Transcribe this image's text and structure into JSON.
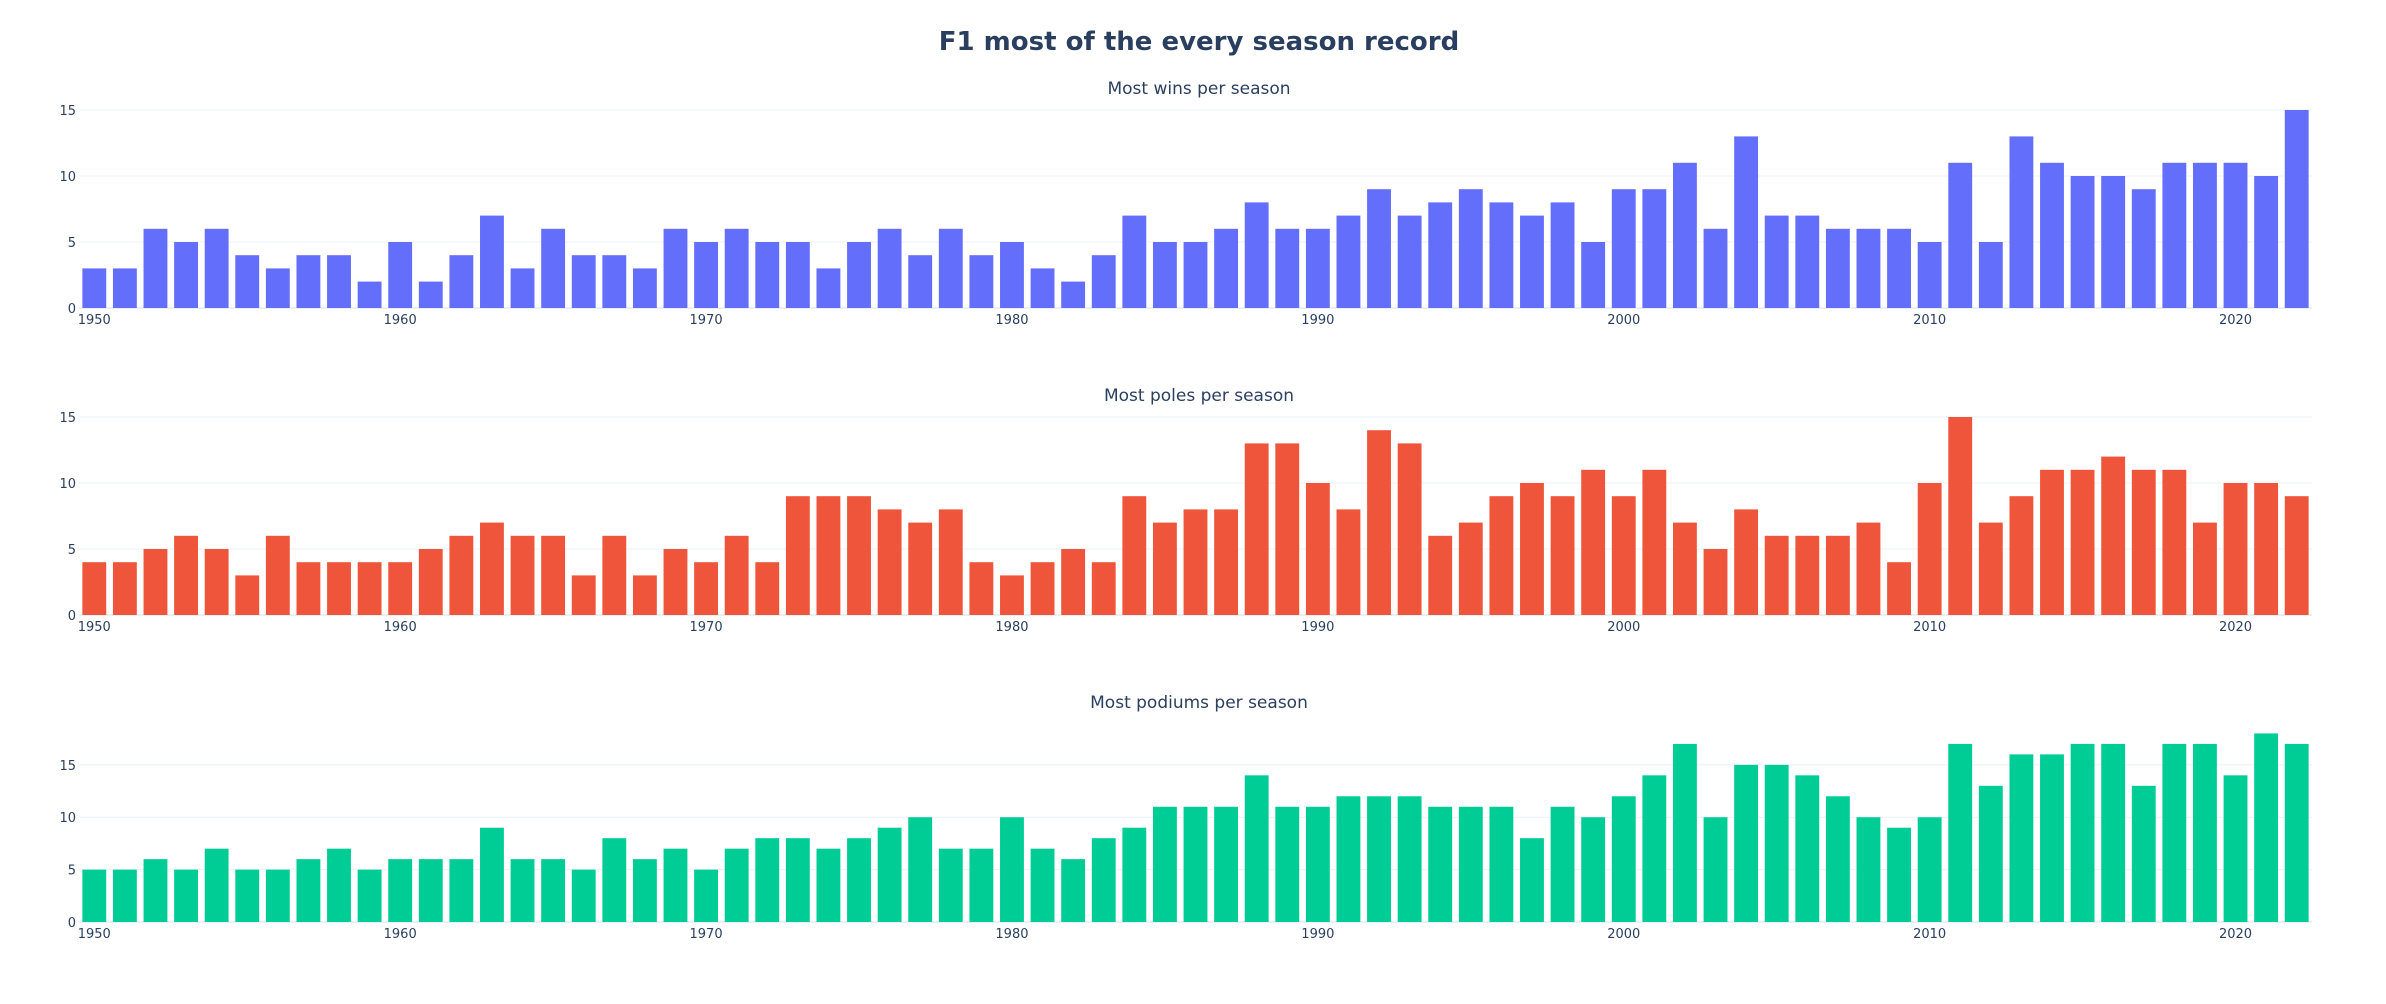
{
  "title": "F1 most of the every season record",
  "chart_data": [
    {
      "type": "bar",
      "title": "Most wins per season",
      "color": "#636efa",
      "x": [
        1950,
        1951,
        1952,
        1953,
        1954,
        1955,
        1956,
        1957,
        1958,
        1959,
        1960,
        1961,
        1962,
        1963,
        1964,
        1965,
        1966,
        1967,
        1968,
        1969,
        1970,
        1971,
        1972,
        1973,
        1974,
        1975,
        1976,
        1977,
        1978,
        1979,
        1980,
        1981,
        1982,
        1983,
        1984,
        1985,
        1986,
        1987,
        1988,
        1989,
        1990,
        1991,
        1992,
        1993,
        1994,
        1995,
        1996,
        1997,
        1998,
        1999,
        2000,
        2001,
        2002,
        2003,
        2004,
        2005,
        2006,
        2007,
        2008,
        2009,
        2010,
        2011,
        2012,
        2013,
        2014,
        2015,
        2016,
        2017,
        2018,
        2019,
        2020,
        2021,
        2022
      ],
      "values": [
        3,
        3,
        6,
        5,
        6,
        4,
        3,
        4,
        4,
        2,
        5,
        2,
        4,
        7,
        3,
        6,
        4,
        4,
        3,
        6,
        5,
        6,
        5,
        5,
        3,
        5,
        6,
        4,
        6,
        4,
        5,
        3,
        2,
        4,
        7,
        5,
        5,
        6,
        8,
        6,
        6,
        7,
        9,
        7,
        8,
        9,
        8,
        7,
        8,
        5,
        9,
        9,
        11,
        6,
        13,
        7,
        7,
        6,
        6,
        6,
        5,
        11,
        5,
        13,
        11,
        10,
        10,
        9,
        11,
        11,
        11,
        10,
        15
      ],
      "x_ticks": [
        "1950",
        "1960",
        "1970",
        "1980",
        "1990",
        "2000",
        "2010",
        "2020"
      ],
      "y_ticks": [
        "0",
        "5",
        "10",
        "15"
      ],
      "ylim": [
        0,
        15
      ]
    },
    {
      "type": "bar",
      "title": "Most poles per season",
      "color": "#ef553b",
      "x": [
        1950,
        1951,
        1952,
        1953,
        1954,
        1955,
        1956,
        1957,
        1958,
        1959,
        1960,
        1961,
        1962,
        1963,
        1964,
        1965,
        1966,
        1967,
        1968,
        1969,
        1970,
        1971,
        1972,
        1973,
        1974,
        1975,
        1976,
        1977,
        1978,
        1979,
        1980,
        1981,
        1982,
        1983,
        1984,
        1985,
        1986,
        1987,
        1988,
        1989,
        1990,
        1991,
        1992,
        1993,
        1994,
        1995,
        1996,
        1997,
        1998,
        1999,
        2000,
        2001,
        2002,
        2003,
        2004,
        2005,
        2006,
        2007,
        2008,
        2009,
        2010,
        2011,
        2012,
        2013,
        2014,
        2015,
        2016,
        2017,
        2018,
        2019,
        2020,
        2021,
        2022
      ],
      "values": [
        4,
        4,
        5,
        6,
        5,
        3,
        6,
        4,
        4,
        4,
        4,
        5,
        6,
        7,
        6,
        6,
        3,
        6,
        3,
        5,
        4,
        6,
        4,
        9,
        9,
        9,
        8,
        7,
        8,
        4,
        3,
        4,
        5,
        4,
        9,
        7,
        8,
        8,
        13,
        13,
        10,
        8,
        14,
        13,
        6,
        7,
        9,
        10,
        9,
        11,
        9,
        11,
        7,
        5,
        8,
        6,
        6,
        6,
        7,
        4,
        10,
        15,
        7,
        9,
        11,
        11,
        12,
        11,
        11,
        7,
        10,
        10,
        9
      ],
      "x_ticks": [
        "1950",
        "1960",
        "1970",
        "1980",
        "1990",
        "2000",
        "2010",
        "2020"
      ],
      "y_ticks": [
        "0",
        "5",
        "10",
        "15"
      ],
      "ylim": [
        0,
        15
      ]
    },
    {
      "type": "bar",
      "title": "Most podiums per season",
      "color": "#00cc96",
      "x": [
        1950,
        1951,
        1952,
        1953,
        1954,
        1955,
        1956,
        1957,
        1958,
        1959,
        1960,
        1961,
        1962,
        1963,
        1964,
        1965,
        1966,
        1967,
        1968,
        1969,
        1970,
        1971,
        1972,
        1973,
        1974,
        1975,
        1976,
        1977,
        1978,
        1979,
        1980,
        1981,
        1982,
        1983,
        1984,
        1985,
        1986,
        1987,
        1988,
        1989,
        1990,
        1991,
        1992,
        1993,
        1994,
        1995,
        1996,
        1997,
        1998,
        1999,
        2000,
        2001,
        2002,
        2003,
        2004,
        2005,
        2006,
        2007,
        2008,
        2009,
        2010,
        2011,
        2012,
        2013,
        2014,
        2015,
        2016,
        2017,
        2018,
        2019,
        2020,
        2021,
        2022
      ],
      "values": [
        5,
        5,
        6,
        5,
        7,
        5,
        5,
        6,
        7,
        5,
        6,
        6,
        6,
        9,
        6,
        6,
        5,
        8,
        6,
        7,
        5,
        7,
        8,
        8,
        7,
        8,
        9,
        10,
        7,
        7,
        10,
        7,
        6,
        8,
        9,
        11,
        11,
        11,
        14,
        11,
        11,
        12,
        12,
        12,
        11,
        11,
        11,
        8,
        11,
        10,
        12,
        14,
        17,
        10,
        15,
        15,
        14,
        12,
        10,
        9,
        10,
        17,
        13,
        16,
        16,
        17,
        17,
        13,
        17,
        17,
        14,
        18,
        17
      ],
      "x_ticks": [
        "1950",
        "1960",
        "1970",
        "1980",
        "1990",
        "2000",
        "2010",
        "2020"
      ],
      "y_ticks": [
        "0",
        "5",
        "10",
        "15"
      ],
      "ylim": [
        0,
        18.9
      ]
    }
  ]
}
